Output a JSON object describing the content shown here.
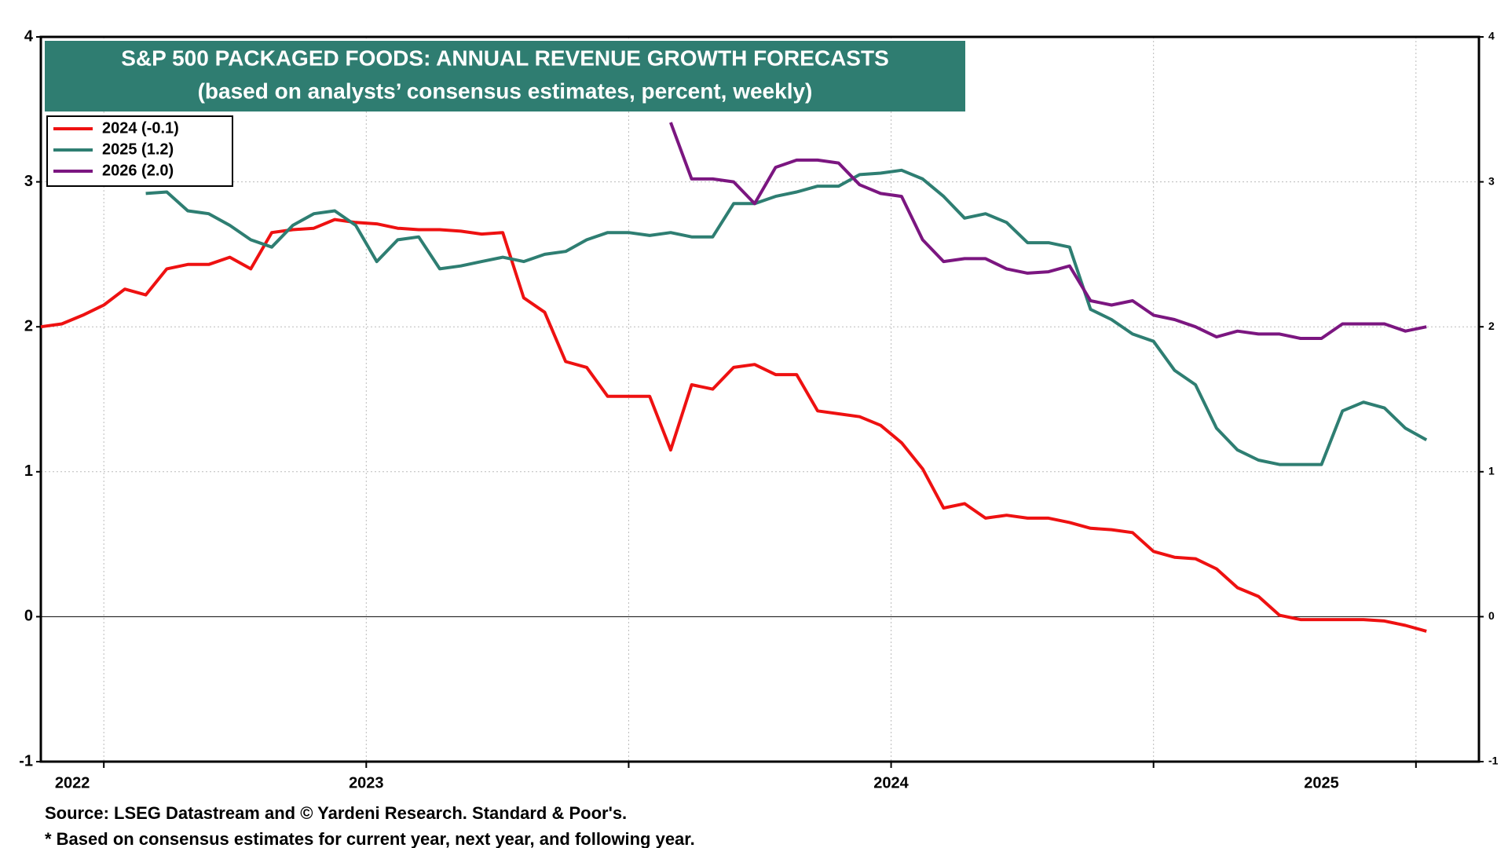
{
  "chart_data": {
    "type": "line",
    "title": "S&P 500 PACKAGED FOODS: ANNUAL REVENUE GROWTH FORECASTS",
    "subtitle": "(based on analysts’ consensus estimates, percent, weekly)",
    "x": [
      2022.38,
      2022.42,
      2022.46,
      2022.5,
      2022.54,
      2022.58,
      2022.62,
      2022.66,
      2022.7,
      2022.74,
      2022.78,
      2022.82,
      2022.86,
      2022.9,
      2022.94,
      2022.98,
      2023.02,
      2023.06,
      2023.1,
      2023.14,
      2023.18,
      2023.22,
      2023.26,
      2023.3,
      2023.34,
      2023.38,
      2023.42,
      2023.46,
      2023.5,
      2023.54,
      2023.58,
      2023.62,
      2023.66,
      2023.7,
      2023.74,
      2023.78,
      2023.82,
      2023.86,
      2023.9,
      2023.94,
      2023.98,
      2024.02,
      2024.06,
      2024.1,
      2024.14,
      2024.18,
      2024.22,
      2024.26,
      2024.3,
      2024.34,
      2024.38,
      2024.42,
      2024.46,
      2024.5,
      2024.54,
      2024.58,
      2024.62,
      2024.66,
      2024.7,
      2024.74,
      2024.78,
      2024.82,
      2024.86,
      2024.9,
      2024.94,
      2024.98,
      2025.02
    ],
    "series": [
      {
        "name": "2024 (-0.1)",
        "color": "#ee1111",
        "values": [
          2.0,
          2.02,
          2.08,
          2.15,
          2.26,
          2.22,
          2.4,
          2.43,
          2.43,
          2.48,
          2.4,
          2.65,
          2.67,
          2.68,
          2.74,
          2.72,
          2.71,
          2.68,
          2.67,
          2.67,
          2.66,
          2.64,
          2.65,
          2.2,
          2.1,
          1.76,
          1.72,
          1.52,
          1.52,
          1.52,
          1.15,
          1.6,
          1.57,
          1.72,
          1.74,
          1.67,
          1.67,
          1.42,
          1.4,
          1.38,
          1.32,
          1.2,
          1.02,
          0.75,
          0.78,
          0.68,
          0.7,
          0.68,
          0.68,
          0.65,
          0.61,
          0.6,
          0.58,
          0.45,
          0.41,
          0.4,
          0.33,
          0.2,
          0.14,
          0.01,
          -0.02,
          -0.02,
          -0.02,
          -0.02,
          -0.03,
          -0.06,
          -0.1
        ]
      },
      {
        "name": "2025 (1.2)",
        "color": "#2e7e72",
        "values": [
          null,
          null,
          null,
          null,
          null,
          2.92,
          2.93,
          2.8,
          2.78,
          2.7,
          2.6,
          2.55,
          2.7,
          2.78,
          2.8,
          2.7,
          2.45,
          2.6,
          2.62,
          2.4,
          2.42,
          2.45,
          2.48,
          2.45,
          2.5,
          2.52,
          2.6,
          2.65,
          2.65,
          2.63,
          2.65,
          2.62,
          2.62,
          2.85,
          2.85,
          2.9,
          2.93,
          2.97,
          2.97,
          3.05,
          3.06,
          3.08,
          3.02,
          2.9,
          2.75,
          2.78,
          2.72,
          2.58,
          2.58,
          2.55,
          2.12,
          2.05,
          1.95,
          1.9,
          1.7,
          1.6,
          1.3,
          1.15,
          1.08,
          1.05,
          1.05,
          1.05,
          1.42,
          1.48,
          1.44,
          1.3,
          1.22
        ]
      },
      {
        "name": "2026 (2.0)",
        "color": "#7b1680",
        "values": [
          null,
          null,
          null,
          null,
          null,
          null,
          null,
          null,
          null,
          null,
          null,
          null,
          null,
          null,
          null,
          null,
          null,
          null,
          null,
          null,
          null,
          null,
          null,
          null,
          null,
          null,
          null,
          null,
          null,
          null,
          3.41,
          3.02,
          3.02,
          3.0,
          2.85,
          3.1,
          3.15,
          3.15,
          3.13,
          2.98,
          2.92,
          2.9,
          2.6,
          2.45,
          2.47,
          2.47,
          2.4,
          2.37,
          2.38,
          2.42,
          2.18,
          2.15,
          2.18,
          2.08,
          2.05,
          2.0,
          1.93,
          1.97,
          1.95,
          1.95,
          1.92,
          1.92,
          2.02,
          2.02,
          2.02,
          1.97,
          2.0
        ]
      }
    ],
    "xlim": [
      2022.38,
      2025.12
    ],
    "xgrid": [
      2022.5,
      2023,
      2023.5,
      2024,
      2024.5,
      2025
    ],
    "xtick_labels": [
      {
        "value": 2022.44,
        "label": "2022"
      },
      {
        "value": 2023,
        "label": "2023"
      },
      {
        "value": 2024,
        "label": "2024"
      },
      {
        "value": 2024.82,
        "label": "2025"
      }
    ],
    "ylim": [
      -1,
      4
    ],
    "yticks": [
      -1,
      0,
      1,
      2,
      3,
      4
    ],
    "grid": true,
    "legend": "upper left",
    "notes": [
      "Source: LSEG Datastream and © Yardeni Research. Standard & Poor's.",
      "* Based on consensus estimates for current year, next year, and following year."
    ]
  }
}
